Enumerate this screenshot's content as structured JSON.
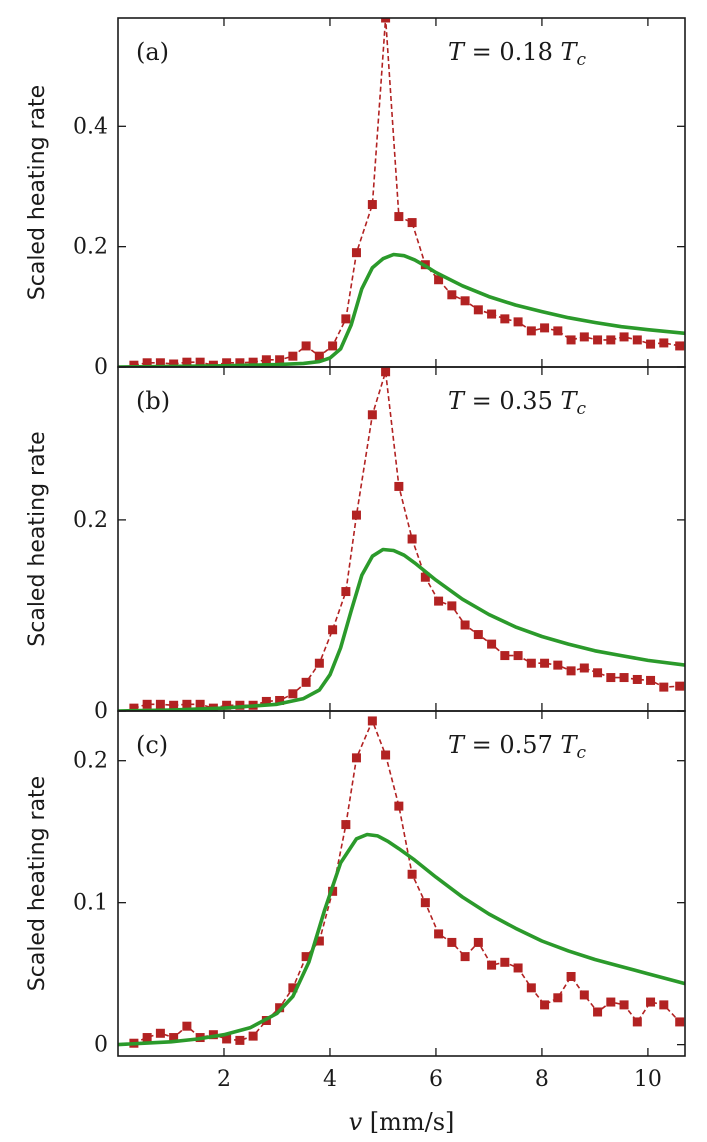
{
  "chart_data": {
    "type": "line",
    "xlabel": "v [mm/s]",
    "xlim": [
      0,
      10.7
    ],
    "xticks": [
      2,
      4,
      6,
      8,
      10
    ],
    "colors": {
      "measured": "#b22222",
      "model": "#2b9a2b"
    },
    "panels": [
      {
        "label": "(a)",
        "temperature": "T = 0.18 T",
        "temperature_subscript": "c",
        "ylabel": "Scaled heating rate",
        "ylim": [
          0,
          0.58
        ],
        "yticks": [
          0,
          0.2,
          0.4
        ],
        "ytick_labels": [
          "0",
          "0.2",
          "0.4"
        ],
        "series": [
          {
            "style": "dashed-markers",
            "x": [
              0.3,
              0.55,
              0.8,
              1.05,
              1.3,
              1.55,
              1.8,
              2.05,
              2.3,
              2.55,
              2.8,
              3.05,
              3.3,
              3.55,
              3.8,
              4.05,
              4.3,
              4.5,
              4.8,
              5.05,
              5.3,
              5.55,
              5.8,
              6.05,
              6.3,
              6.55,
              6.8,
              7.05,
              7.3,
              7.55,
              7.8,
              8.05,
              8.3,
              8.55,
              8.8,
              9.05,
              9.3,
              9.55,
              9.8,
              10.05,
              10.3,
              10.6
            ],
            "y": [
              0.003,
              0.007,
              0.007,
              0.005,
              0.008,
              0.008,
              0.003,
              0.007,
              0.007,
              0.008,
              0.012,
              0.012,
              0.018,
              0.035,
              0.018,
              0.035,
              0.08,
              0.19,
              0.27,
              0.58,
              0.25,
              0.24,
              0.17,
              0.145,
              0.12,
              0.11,
              0.095,
              0.088,
              0.08,
              0.075,
              0.06,
              0.065,
              0.06,
              0.045,
              0.05,
              0.045,
              0.045,
              0.05,
              0.045,
              0.038,
              0.04,
              0.035
            ]
          },
          {
            "style": "solid",
            "x": [
              0,
              1,
              2,
              3,
              3.5,
              3.8,
              4.0,
              4.2,
              4.4,
              4.6,
              4.8,
              5.0,
              5.2,
              5.4,
              5.6,
              5.8,
              6.0,
              6.5,
              7.0,
              7.5,
              8.0,
              8.5,
              9.0,
              9.5,
              10.0,
              10.7
            ],
            "y": [
              0,
              0.001,
              0.002,
              0.004,
              0.006,
              0.009,
              0.015,
              0.03,
              0.07,
              0.13,
              0.165,
              0.18,
              0.187,
              0.185,
              0.178,
              0.168,
              0.157,
              0.135,
              0.117,
              0.103,
              0.092,
              0.082,
              0.074,
              0.067,
              0.062,
              0.056
            ]
          }
        ]
      },
      {
        "label": "(b)",
        "temperature": "T = 0.35 T",
        "temperature_subscript": "c",
        "ylabel": "Scaled heating rate",
        "ylim": [
          0,
          0.36
        ],
        "yticks": [
          0,
          0.2
        ],
        "ytick_labels": [
          "0",
          "0.2"
        ],
        "series": [
          {
            "style": "dashed-markers",
            "x": [
              0.3,
              0.55,
              0.8,
              1.05,
              1.3,
              1.55,
              1.8,
              2.05,
              2.3,
              2.55,
              2.8,
              3.05,
              3.3,
              3.55,
              3.8,
              4.05,
              4.3,
              4.5,
              4.8,
              5.05,
              5.3,
              5.55,
              5.8,
              6.05,
              6.3,
              6.55,
              6.8,
              7.05,
              7.3,
              7.55,
              7.8,
              8.05,
              8.3,
              8.55,
              8.8,
              9.05,
              9.3,
              9.55,
              9.8,
              10.05,
              10.3,
              10.6
            ],
            "y": [
              0.003,
              0.007,
              0.007,
              0.006,
              0.007,
              0.007,
              0.003,
              0.006,
              0.006,
              0.006,
              0.01,
              0.011,
              0.018,
              0.03,
              0.05,
              0.085,
              0.125,
              0.205,
              0.31,
              0.355,
              0.235,
              0.18,
              0.14,
              0.115,
              0.11,
              0.09,
              0.08,
              0.07,
              0.058,
              0.058,
              0.05,
              0.05,
              0.048,
              0.042,
              0.045,
              0.04,
              0.035,
              0.035,
              0.033,
              0.032,
              0.025,
              0.026
            ]
          },
          {
            "style": "solid",
            "x": [
              0,
              1,
              2,
              3,
              3.5,
              3.8,
              4.0,
              4.2,
              4.4,
              4.6,
              4.8,
              5.0,
              5.2,
              5.4,
              5.6,
              5.8,
              6.0,
              6.5,
              7.0,
              7.5,
              8.0,
              8.5,
              9.0,
              9.5,
              10.0,
              10.7
            ],
            "y": [
              0,
              0.001,
              0.003,
              0.007,
              0.013,
              0.022,
              0.038,
              0.066,
              0.105,
              0.142,
              0.162,
              0.169,
              0.168,
              0.163,
              0.155,
              0.146,
              0.137,
              0.117,
              0.101,
              0.088,
              0.078,
              0.07,
              0.063,
              0.058,
              0.053,
              0.048
            ]
          }
        ]
      },
      {
        "label": "(c)",
        "temperature": "T = 0.57 T",
        "temperature_subscript": "c",
        "ylabel": "Scaled heating rate",
        "ylim": [
          -0.008,
          0.235
        ],
        "yticks": [
          0,
          0.1,
          0.2
        ],
        "ytick_labels": [
          "0",
          "0.1",
          "0.2"
        ],
        "series": [
          {
            "style": "dashed-markers",
            "x": [
              0.3,
              0.55,
              0.8,
              1.05,
              1.3,
              1.55,
              1.8,
              2.05,
              2.3,
              2.55,
              2.8,
              3.05,
              3.3,
              3.55,
              3.8,
              4.05,
              4.3,
              4.5,
              4.8,
              5.05,
              5.3,
              5.55,
              5.8,
              6.05,
              6.3,
              6.55,
              6.8,
              7.05,
              7.3,
              7.55,
              7.8,
              8.05,
              8.3,
              8.55,
              8.8,
              9.05,
              9.3,
              9.55,
              9.8,
              10.05,
              10.3,
              10.6
            ],
            "y": [
              0.001,
              0.005,
              0.008,
              0.005,
              0.013,
              0.005,
              0.007,
              0.004,
              0.003,
              0.006,
              0.017,
              0.026,
              0.04,
              0.062,
              0.073,
              0.108,
              0.155,
              0.202,
              0.228,
              0.204,
              0.168,
              0.12,
              0.1,
              0.078,
              0.072,
              0.062,
              0.072,
              0.056,
              0.058,
              0.054,
              0.04,
              0.028,
              0.033,
              0.048,
              0.035,
              0.023,
              0.03,
              0.028,
              0.016,
              0.03,
              0.028,
              0.016
            ]
          },
          {
            "style": "solid",
            "x": [
              0,
              0.5,
              1,
              1.5,
              2,
              2.5,
              3,
              3.3,
              3.6,
              3.9,
              4.2,
              4.5,
              4.7,
              4.9,
              5.1,
              5.3,
              5.6,
              6,
              6.5,
              7,
              7.5,
              8,
              8.5,
              9,
              9.5,
              10,
              10.7
            ],
            "y": [
              0,
              0.001,
              0.002,
              0.004,
              0.007,
              0.012,
              0.022,
              0.034,
              0.058,
              0.095,
              0.128,
              0.145,
              0.148,
              0.147,
              0.143,
              0.138,
              0.13,
              0.118,
              0.104,
              0.092,
              0.082,
              0.073,
              0.066,
              0.06,
              0.055,
              0.05,
              0.043
            ]
          }
        ]
      }
    ]
  }
}
